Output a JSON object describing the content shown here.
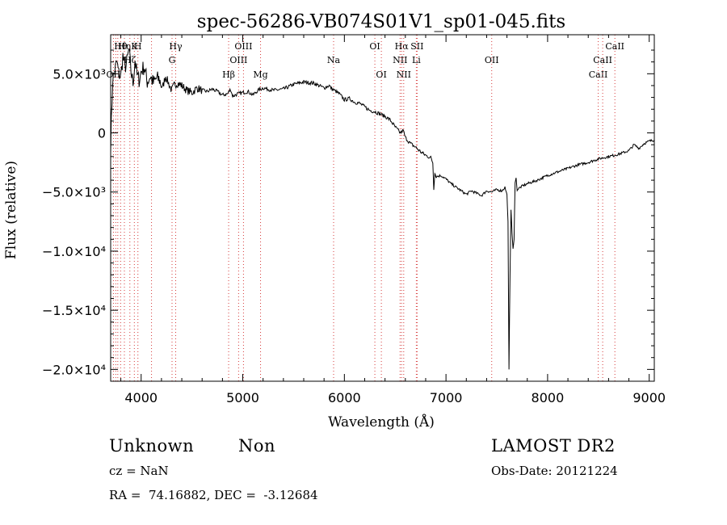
{
  "chart_data": {
    "type": "line",
    "title": "spec-56286-VB074S01V1_sp01-045.fits",
    "xlabel": "Wavelength (Å)",
    "ylabel": "Flux (relative)",
    "xlim": [
      3700,
      9050
    ],
    "ylim": [
      -21000,
      8300
    ],
    "x_ticks": [
      4000,
      5000,
      6000,
      7000,
      8000,
      9000
    ],
    "x_tick_labels": [
      "4000",
      "5000",
      "6000",
      "7000",
      "8000",
      "9000"
    ],
    "y_ticks": [
      5000,
      0,
      -5000,
      -10000,
      -15000,
      -20000
    ],
    "y_tick_labels": [
      "5.0×10³",
      "0",
      "−5.0×10³",
      "−1.0×10⁴",
      "−1.5×10⁴",
      "−2.0×10⁴"
    ],
    "series": [
      {
        "x": [
          3700,
          3720,
          3740,
          3760,
          3780,
          3800,
          3820,
          3840,
          3860,
          3880,
          3900,
          3920,
          3940,
          3960,
          3980,
          4000,
          4030,
          4060,
          4090,
          4120,
          4150,
          4180,
          4210,
          4240,
          4270,
          4300,
          4330,
          4360,
          4400,
          4450,
          4500,
          4550,
          4600,
          4650,
          4700,
          4750,
          4800,
          4850,
          4880,
          4900,
          4950,
          5000,
          5050,
          5100,
          5150,
          5200,
          5300,
          5400,
          5500,
          5600,
          5700,
          5800,
          5850,
          5880,
          5900,
          5950,
          6000,
          6050,
          6100,
          6150,
          6200,
          6250,
          6300,
          6350,
          6400,
          6450,
          6500,
          6550,
          6580,
          6600,
          6650,
          6700,
          6750,
          6800,
          6850,
          6870,
          6880,
          6890,
          6900,
          6950,
          7000,
          7050,
          7100,
          7150,
          7200,
          7250,
          7300,
          7350,
          7400,
          7450,
          7500,
          7550,
          7580,
          7600,
          7610,
          7620,
          7630,
          7640,
          7650,
          7660,
          7670,
          7680,
          7690,
          7700,
          7750,
          7800,
          7900,
          8000,
          8100,
          8200,
          8300,
          8400,
          8500,
          8600,
          8700,
          8800,
          8850,
          8900,
          8950,
          9000,
          9050
        ],
        "y": [
          -1000,
          4500,
          5200,
          6000,
          5000,
          4800,
          6500,
          5500,
          6000,
          7000,
          5200,
          4200,
          6200,
          4800,
          4500,
          5200,
          5600,
          4300,
          4800,
          4200,
          4600,
          4500,
          3800,
          4800,
          4200,
          3600,
          4100,
          4200,
          4000,
          3600,
          3400,
          3800,
          3600,
          3500,
          3700,
          3500,
          3200,
          3300,
          3700,
          3100,
          3300,
          3400,
          3500,
          3200,
          3600,
          3800,
          3600,
          3700,
          4100,
          4300,
          4200,
          3800,
          4000,
          3700,
          3600,
          3300,
          2800,
          2900,
          2600,
          2500,
          2200,
          1900,
          1800,
          1600,
          1400,
          1100,
          500,
          0,
          200,
          -400,
          -900,
          -1200,
          -1600,
          -1900,
          -2100,
          -2500,
          -4700,
          -3300,
          -3700,
          -3600,
          -3900,
          -4300,
          -4600,
          -4900,
          -5200,
          -4900,
          -5100,
          -5300,
          -4900,
          -5000,
          -4800,
          -4900,
          -4600,
          -5200,
          -7500,
          -20000,
          -12000,
          -6500,
          -8500,
          -9800,
          -9000,
          -4200,
          -3800,
          -4800,
          -4500,
          -4300,
          -4000,
          -3600,
          -3300,
          -3000,
          -2700,
          -2500,
          -2200,
          -2000,
          -1800,
          -1500,
          -1000,
          -1300,
          -900,
          -700,
          -600
        ]
      }
    ],
    "lines": [
      {
        "x": 3727,
        "label": "OII",
        "row": 3
      },
      {
        "x": 3750,
        "label": "",
        "row": 0
      },
      {
        "x": 3770,
        "label": "",
        "row": 0
      },
      {
        "x": 3798,
        "label": "Hθ",
        "row": 1
      },
      {
        "x": 3835,
        "label": "Hη",
        "row": 1
      },
      {
        "x": 3889,
        "label": "Hζ",
        "row": 2
      },
      {
        "x": 3933,
        "label": "K",
        "row": 1
      },
      {
        "x": 3968,
        "label": "H",
        "row": 1
      },
      {
        "x": 4102,
        "label": "",
        "row": 0
      },
      {
        "x": 4304,
        "label": "G",
        "row": 2
      },
      {
        "x": 4340,
        "label": "Hγ",
        "row": 1
      },
      {
        "x": 4861,
        "label": "Hβ",
        "row": 3
      },
      {
        "x": 4959,
        "label": "OIII",
        "row": 2
      },
      {
        "x": 5007,
        "label": "OIII",
        "row": 1
      },
      {
        "x": 5175,
        "label": "Mg",
        "row": 3
      },
      {
        "x": 5894,
        "label": "Na",
        "row": 2
      },
      {
        "x": 6300,
        "label": "OI",
        "row": 1
      },
      {
        "x": 6364,
        "label": "OI",
        "row": 3
      },
      {
        "x": 6548,
        "label": "NII",
        "row": 2
      },
      {
        "x": 6563,
        "label": "Hα",
        "row": 1
      },
      {
        "x": 6584,
        "label": "NII",
        "row": 3
      },
      {
        "x": 6716,
        "label": "SII",
        "row": 1
      },
      {
        "x": 6708,
        "label": "Li",
        "row": 2
      },
      {
        "x": 7450,
        "label": "OII",
        "row": 2
      },
      {
        "x": 8498,
        "label": "CaII",
        "row": 3
      },
      {
        "x": 8542,
        "label": "CaII",
        "row": 2
      },
      {
        "x": 8662,
        "label": "CaII",
        "row": 1
      }
    ]
  },
  "info": {
    "class_label": "Unknown",
    "subclass_label": "Non",
    "survey_label": "LAMOST DR2",
    "cz_text": "cz = NaN",
    "obs_date_text": "Obs-Date: 20121224",
    "coords_text": "RA =  74.16882, DEC =  -3.12684"
  }
}
